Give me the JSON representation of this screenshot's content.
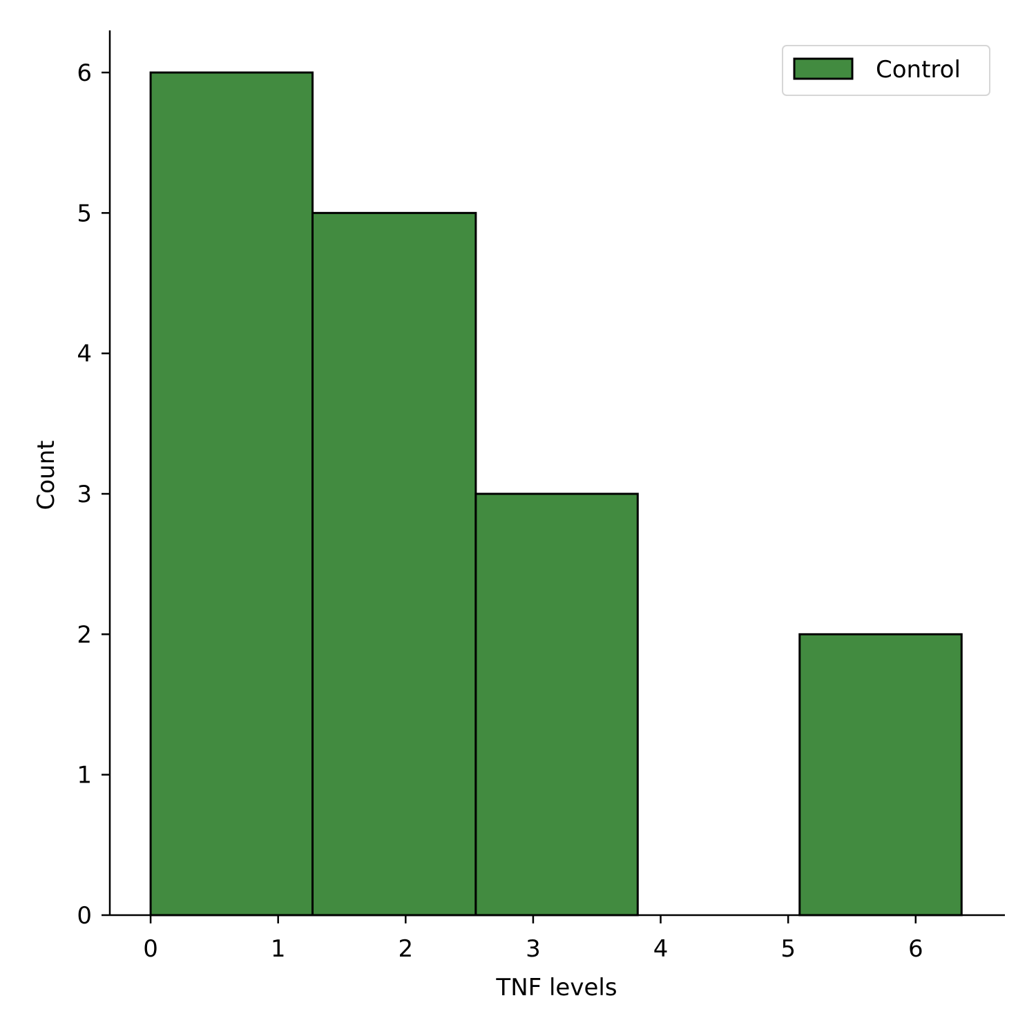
{
  "chart_data": {
    "type": "bar",
    "subtype": "histogram",
    "xlabel": "TNF levels",
    "ylabel": "Count",
    "xlim": [
      -0.32,
      6.7
    ],
    "ylim": [
      0,
      6.3
    ],
    "xticks": [
      0,
      1,
      2,
      3,
      4,
      5,
      6
    ],
    "yticks": [
      0,
      1,
      2,
      3,
      4,
      5,
      6
    ],
    "bins": [
      {
        "start": 0.0,
        "end": 1.27,
        "count": 6
      },
      {
        "start": 1.27,
        "end": 2.55,
        "count": 5
      },
      {
        "start": 2.55,
        "end": 3.82,
        "count": 3
      },
      {
        "start": 3.82,
        "end": 5.09,
        "count": 0
      },
      {
        "start": 5.09,
        "end": 6.36,
        "count": 2
      }
    ],
    "series": [
      {
        "name": "Control",
        "color": "#428b40"
      }
    ],
    "legend": {
      "position": "top-right",
      "entries": [
        "Control"
      ]
    },
    "grid": false
  }
}
